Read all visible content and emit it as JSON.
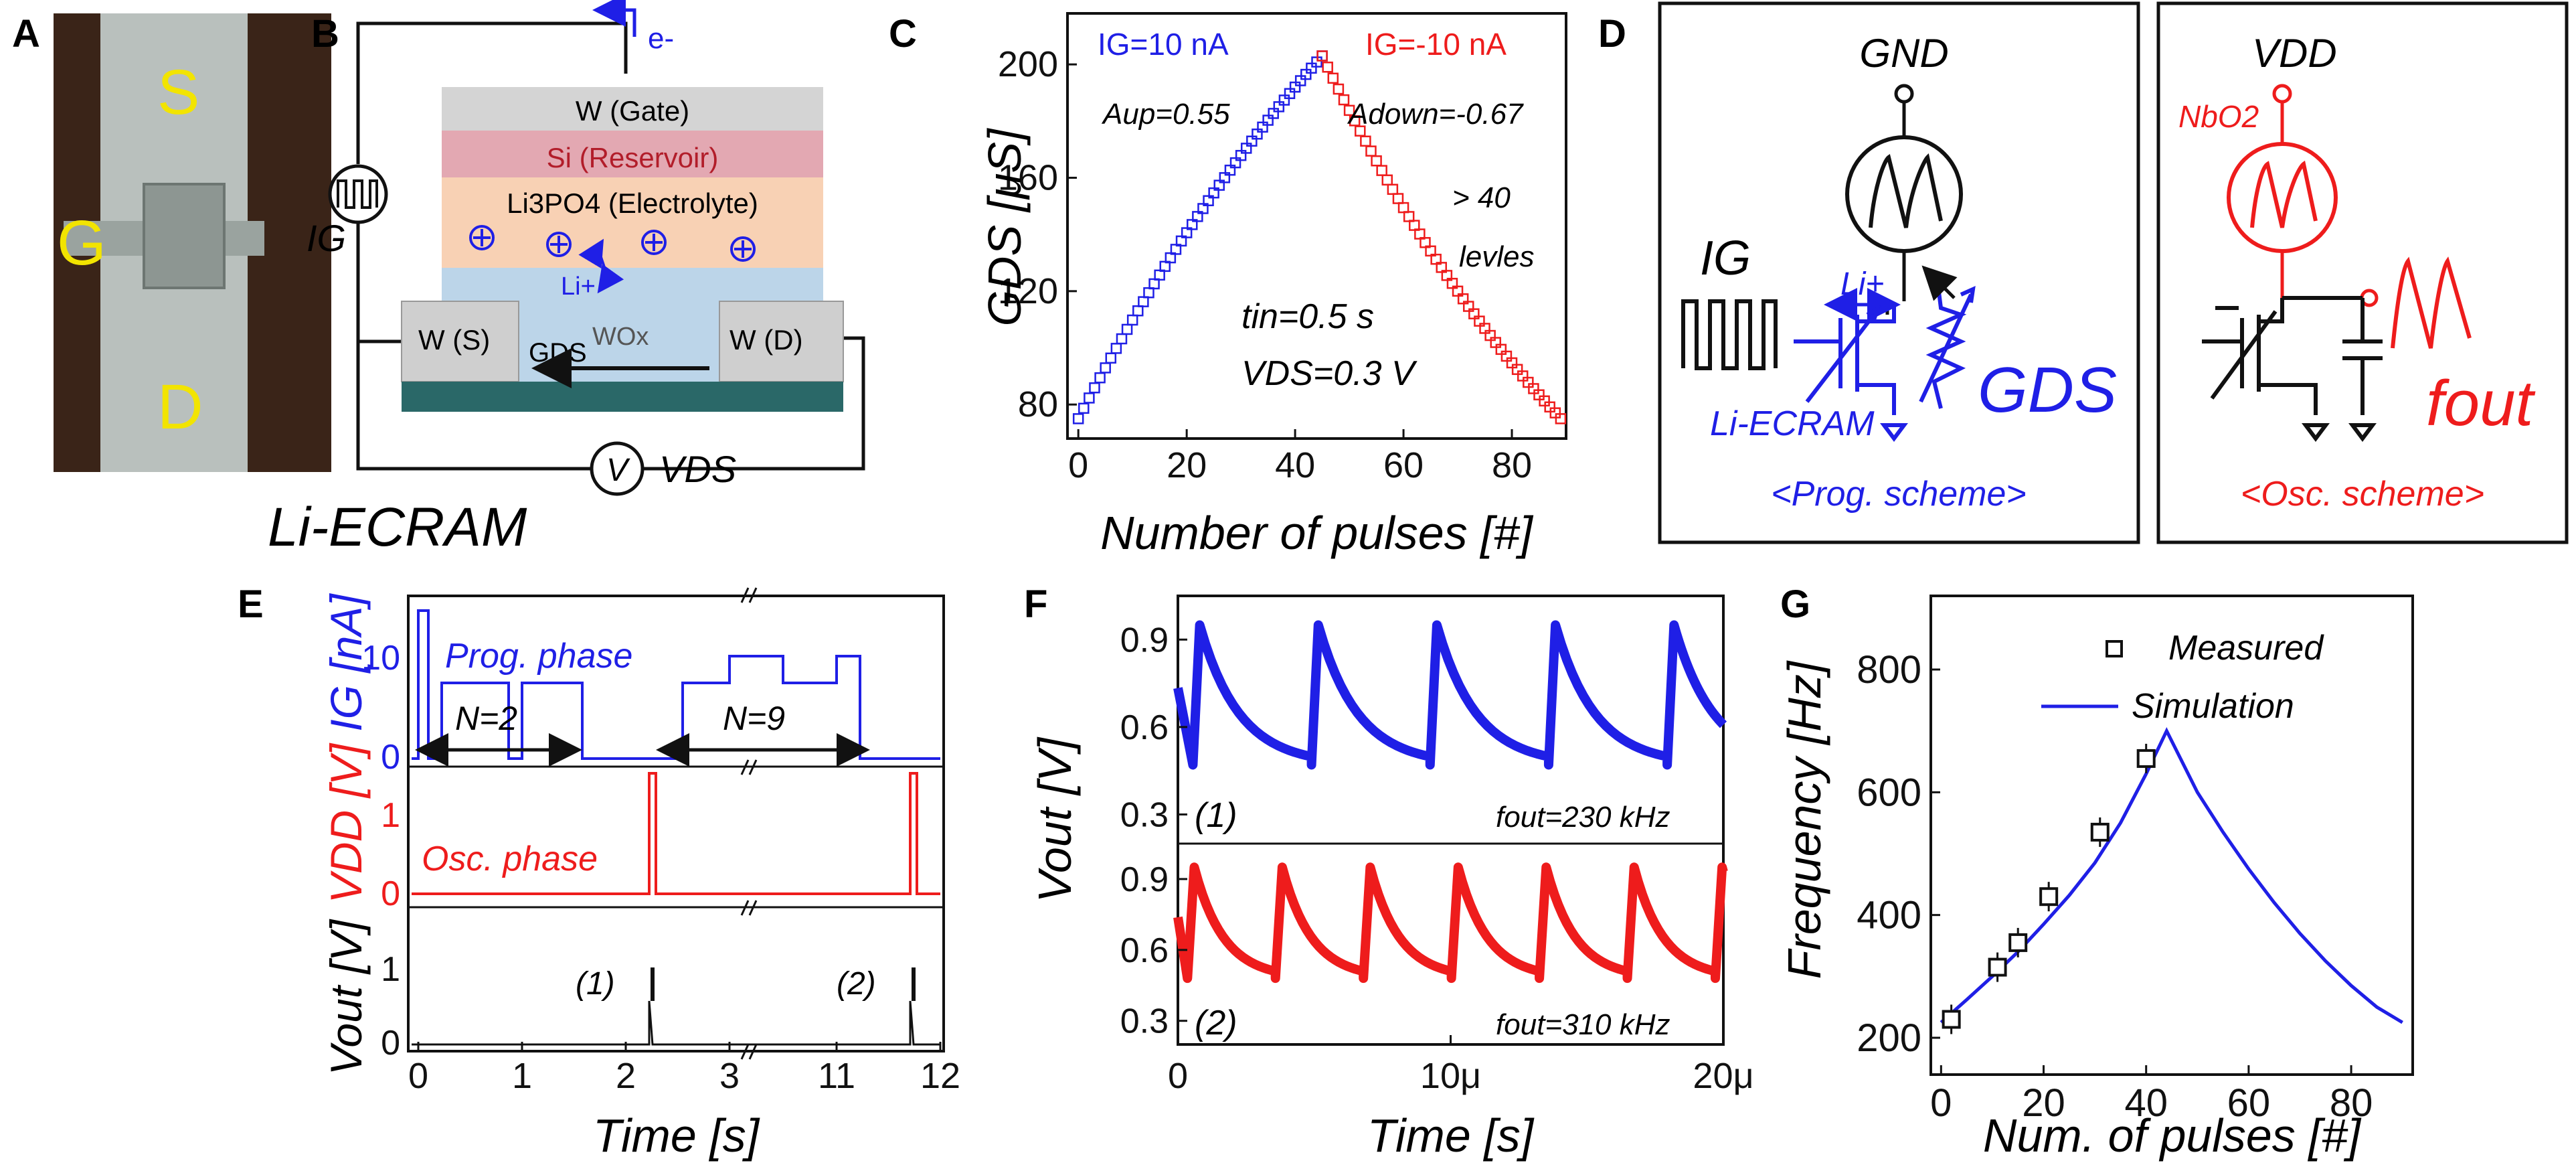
{
  "colors": {
    "blue": "#1f1fe6",
    "red": "#ee1c1c",
    "black": "#111111"
  },
  "panel_labels": {
    "a": "A",
    "b": "B",
    "c": "C",
    "d": "D",
    "e": "E",
    "f": "F",
    "g": "G"
  },
  "panelA": {
    "s": "S",
    "g": "G",
    "d": "D"
  },
  "panelB": {
    "electron": "e-",
    "gate": "W (Gate)",
    "reservoir": "Si (Reservoir)",
    "electrolyte": "Li3PO4 (Electrolyte)",
    "li": "Li+",
    "wox": "WOx",
    "source": "W (S)",
    "drain": "W (D)",
    "gds": "GDS",
    "ig": "IG",
    "vds": "VDS",
    "v": "V",
    "name": "Li-ECRAM"
  },
  "panelC": {
    "label_ig_pos": "IG=10 nA",
    "label_ig_neg": "IG=-10 nA",
    "a_up": "Aup=0.55",
    "a_down": "Adown=-0.67",
    "levels1": "> 40",
    "levels2": "levles",
    "t_in": "tin=0.5 s",
    "v_ds": "VDS=0.3 V",
    "xlabel": "Number of pulses [#]",
    "ylabel": "GDS [μS]"
  },
  "panelD": {
    "gnd": "GND",
    "li": "Li+",
    "ig": "IG",
    "gds": "GDS",
    "eclabel": "Li-ECRAM",
    "prog": "<Prog. scheme>",
    "vdd": "VDD",
    "nbo2": "NbO2",
    "fout": "fout",
    "osc": "<Osc. scheme>"
  },
  "panelE": {
    "prog_phase": "Prog. phase",
    "n2": "N=2",
    "n9": "N=9",
    "osc_phase": "Osc. phase",
    "m1": "(1)",
    "m2": "(2)",
    "xlabel": "Time [s]",
    "ylabel_ig": "IG [nA]",
    "ylabel_vdd": "VDD [V]",
    "ylabel_vout": "Vout [V]"
  },
  "panelF": {
    "m1": "(1)",
    "m2": "(2)",
    "f1": "fout=230 kHz",
    "f2": "fout=310 kHz",
    "xlabel": "Time [s]",
    "ylabel": "Vout [V]"
  },
  "panelG": {
    "legend_measured": "Measured",
    "legend_sim": "Simulation",
    "xlabel": "Num. of pulses [#]",
    "ylabel": "Frequency [Hz]"
  },
  "chart_data": [
    {
      "id": "C",
      "type": "scatter",
      "title": "",
      "xlabel": "Number of pulses [#]",
      "ylabel": "GDS [μS]",
      "xlim": [
        -2,
        90
      ],
      "ylim": [
        68,
        218
      ],
      "xticks": [
        "0",
        "20",
        "40",
        "60",
        "80"
      ],
      "yticks": [
        "80",
        "120",
        "160",
        "200"
      ],
      "series": [
        {
          "name": "IG=10 nA",
          "color": "#1f1fe6",
          "x_start": 0,
          "x_end": 45,
          "y_start": 75,
          "y_end": 203,
          "A": 0.55,
          "n": 46
        },
        {
          "name": "IG=-10 nA",
          "color": "#ee1c1c",
          "x_start": 45,
          "x_end": 89,
          "y_start": 203,
          "y_end": 75,
          "A": -0.67,
          "n": 45
        }
      ]
    },
    {
      "id": "E",
      "type": "line",
      "xlabel": "Time [s]",
      "xticks": [
        "0",
        "1",
        "2",
        "3",
        "11",
        "12"
      ],
      "ig_yticks": [
        "0",
        "10"
      ],
      "vdd_yticks": [
        "0",
        "1"
      ],
      "vout_yticks": [
        "0",
        "1"
      ]
    },
    {
      "id": "F1",
      "type": "line",
      "xlabel": "",
      "ylabel": "Vout [V]",
      "ylim": [
        0.2,
        1.05
      ],
      "yticks": [
        "0.3",
        "0.6",
        "0.9"
      ],
      "series": [
        {
          "name": "(1)",
          "color": "#1f1fe6",
          "freq_khz": 230,
          "vmax": 0.95,
          "vmin": 0.47
        }
      ]
    },
    {
      "id": "F2",
      "type": "line",
      "xlabel": "Time [s]",
      "ylabel": "Vout [V]",
      "xlim": [
        0,
        20
      ],
      "ylim": [
        0.2,
        1.05
      ],
      "xticks": [
        "0",
        "10μ",
        "20μ"
      ],
      "yticks": [
        "0.3",
        "0.6",
        "0.9"
      ],
      "series": [
        {
          "name": "(2)",
          "color": "#ee1c1c",
          "freq_khz": 310,
          "vmax": 0.95,
          "vmin": 0.48
        }
      ]
    },
    {
      "id": "G",
      "type": "scatter",
      "xlabel": "Num. of pulses [#]",
      "ylabel": "Frequency [Hz]",
      "xlim": [
        -2,
        92
      ],
      "ylim": [
        140,
        920
      ],
      "xticks": [
        "0",
        "20",
        "40",
        "60",
        "80"
      ],
      "yticks": [
        "200",
        "400",
        "600",
        "800"
      ],
      "series": [
        {
          "name": "Measured",
          "x": [
            2,
            11,
            15,
            21,
            31,
            40
          ],
          "y": [
            230,
            315,
            355,
            430,
            535,
            655
          ]
        },
        {
          "name": "Simulation",
          "x": [
            0,
            5,
            10,
            15,
            20,
            25,
            30,
            35,
            40,
            44,
            50,
            55,
            60,
            65,
            70,
            75,
            80,
            85,
            90
          ],
          "y": [
            225,
            262,
            300,
            340,
            385,
            432,
            485,
            550,
            630,
            700,
            600,
            535,
            475,
            420,
            370,
            325,
            285,
            250,
            225
          ]
        }
      ]
    }
  ]
}
